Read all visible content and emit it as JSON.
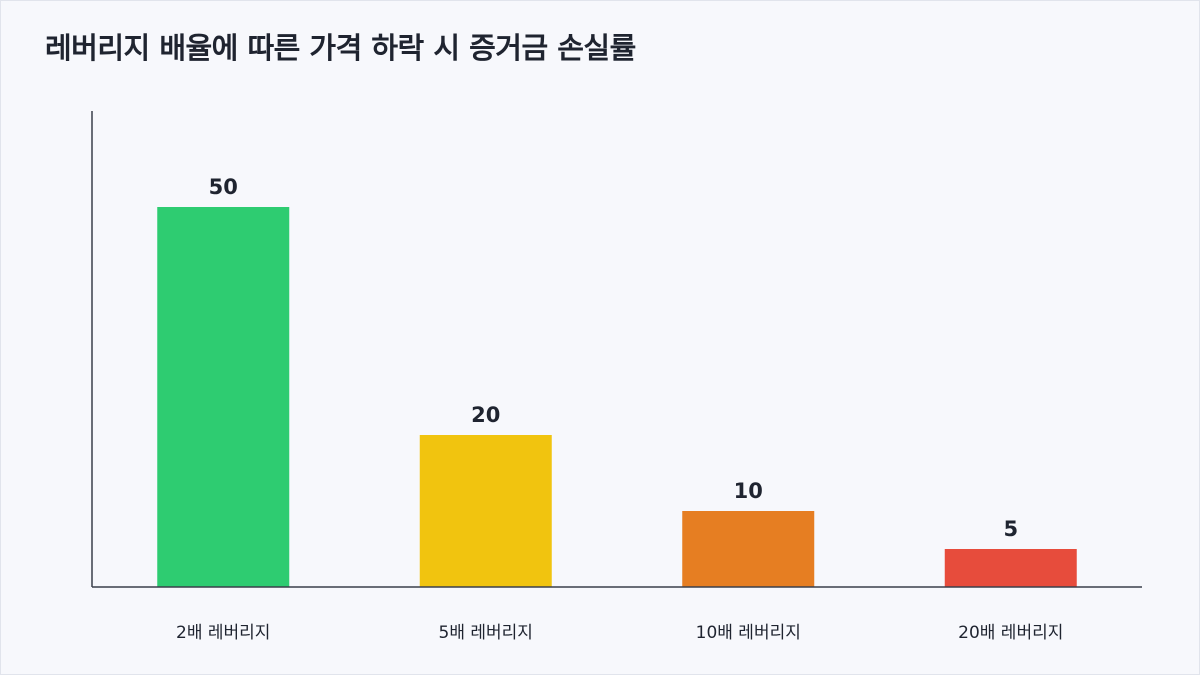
{
  "chart_data": {
    "type": "bar",
    "title": "레버리지 배율에 따른 가격 하락 시 증거금 손실률",
    "xlabel": "",
    "ylabel": "",
    "categories": [
      "2배 레버리지",
      "5배 레버리지",
      "10배 레버리지",
      "20배 레버리지"
    ],
    "values": [
      50,
      20,
      10,
      5
    ],
    "value_labels": [
      "50",
      "20",
      "10",
      "5"
    ],
    "colors": [
      "#2ecc71",
      "#f1c40f",
      "#e67e22",
      "#e74c3c"
    ],
    "ylim": [
      0,
      62.5
    ],
    "grid": false,
    "legend": "none"
  }
}
